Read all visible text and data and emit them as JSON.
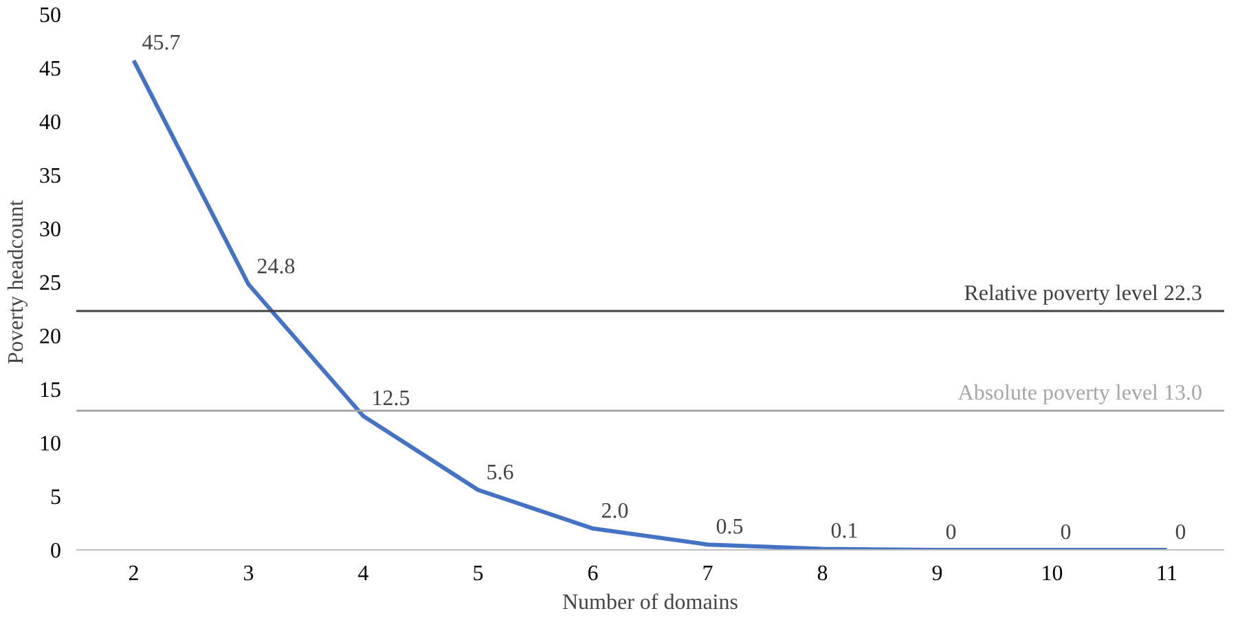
{
  "chart_data": {
    "type": "line",
    "xlabel": "Number of domains",
    "ylabel": "Poverty headcount",
    "categories": [
      "2",
      "3",
      "4",
      "5",
      "6",
      "7",
      "8",
      "9",
      "10",
      "11"
    ],
    "values": [
      45.7,
      24.8,
      12.5,
      5.6,
      2.0,
      0.5,
      0.1,
      0,
      0,
      0
    ],
    "value_labels": [
      "45.7",
      "24.8",
      "12.5",
      "5.6",
      "2.0",
      "0.5",
      "0.1",
      "0",
      "0",
      "0"
    ],
    "color": "#4472c4",
    "ylim": [
      0,
      50
    ],
    "yticks": [
      0,
      5,
      10,
      15,
      20,
      25,
      30,
      35,
      40,
      45,
      50
    ],
    "grid": false,
    "marker": "none",
    "line_style": "solid",
    "ref_lines": [
      {
        "axis": "y",
        "value": 22.3,
        "label": "Relative poverty level   22.3",
        "color": "#404040"
      },
      {
        "axis": "y",
        "value": 13.0,
        "label": "Absolute poverty level   13.0",
        "color": "#a6a6a6"
      }
    ]
  }
}
